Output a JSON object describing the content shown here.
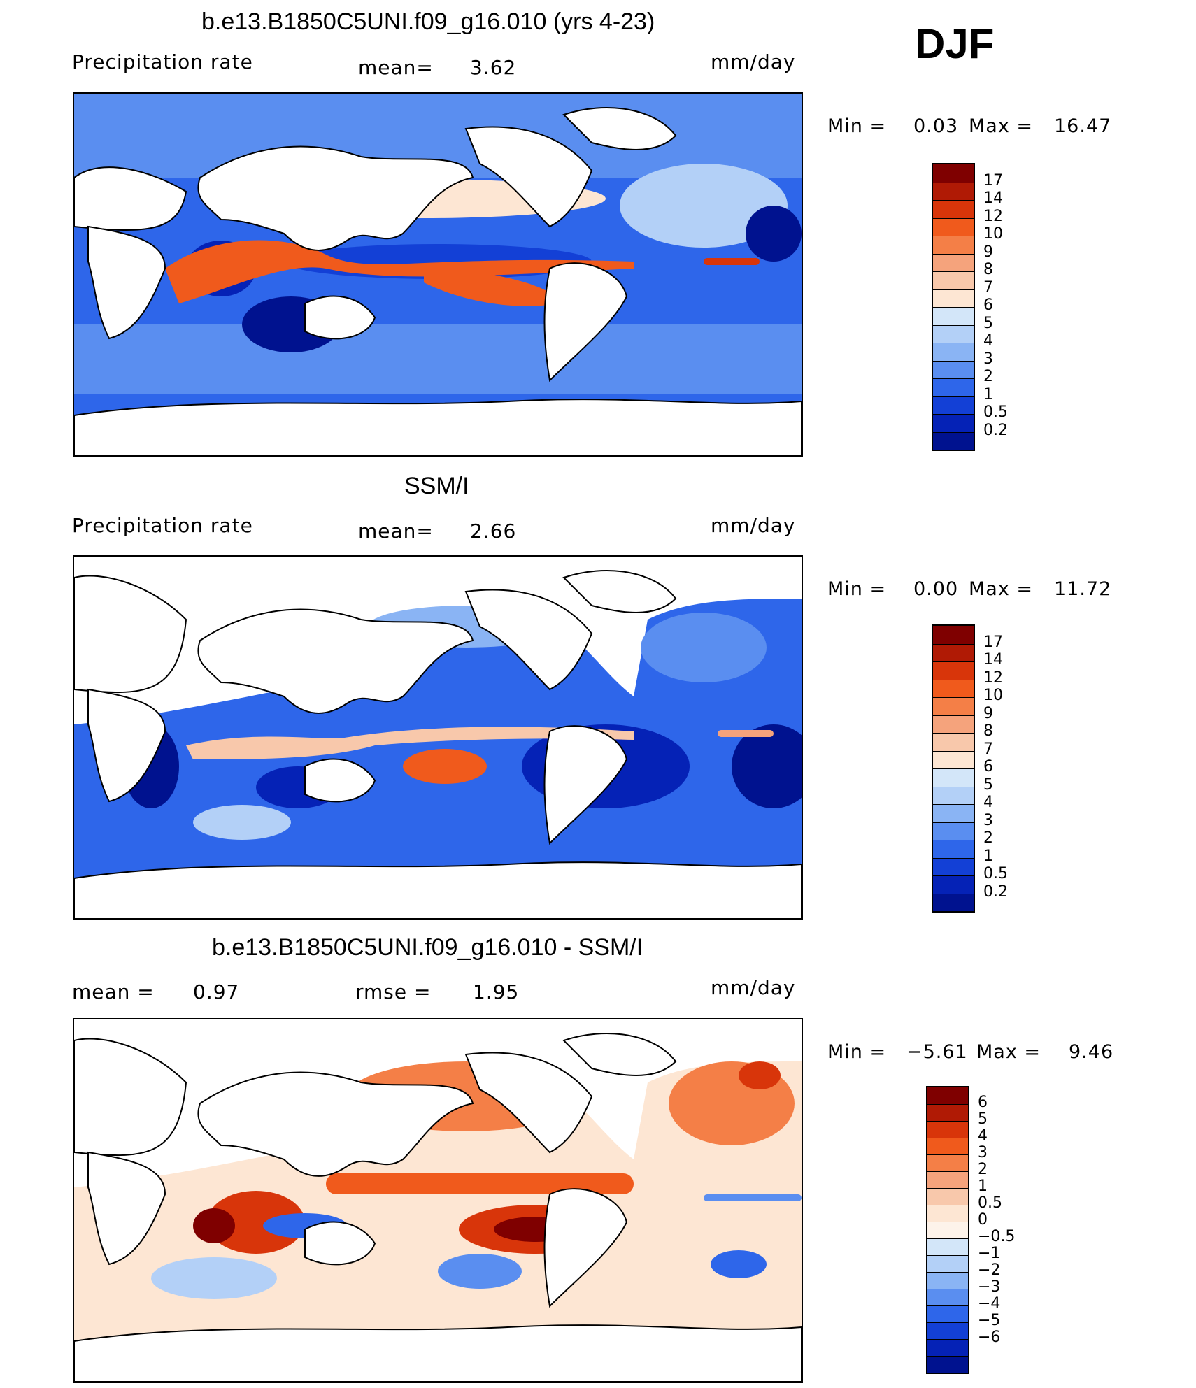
{
  "figure": {
    "season": "DJF",
    "panels": [
      {
        "id": "model",
        "title": "b.e13.B1850C5UNI.f09_g16.010 (yrs 4-23)",
        "left_label": "Precipitation  rate",
        "center_label": "mean=",
        "center_value": "3.62",
        "units": "mm/day",
        "min_label": "Min  =",
        "min_value": "0.03",
        "max_label": "Max  =",
        "max_value": "16.47",
        "colorbar_labels": [
          "17",
          "14",
          "12",
          "10",
          "9",
          "8",
          "7",
          "6",
          "5",
          "4",
          "3",
          "2",
          "1",
          "0.5",
          "0.2"
        ]
      },
      {
        "id": "obs",
        "title": "SSM/I",
        "left_label": "Precipitation  rate",
        "center_label": "mean=",
        "center_value": "2.66",
        "units": "mm/day",
        "min_label": "Min  =",
        "min_value": "0.00",
        "max_label": "Max  =",
        "max_value": "11.72",
        "colorbar_labels": [
          "17",
          "14",
          "12",
          "10",
          "9",
          "8",
          "7",
          "6",
          "5",
          "4",
          "3",
          "2",
          "1",
          "0.5",
          "0.2"
        ]
      },
      {
        "id": "diff",
        "title": "b.e13.B1850C5UNI.f09_g16.010 - SSM/I",
        "left_label": "mean  =",
        "left_value": "0.97",
        "center_label": "rmse  =",
        "center_value": "1.95",
        "units": "mm/day",
        "min_label": "Min  =",
        "min_value": "−5.61",
        "max_label": "Max  =",
        "max_value": "9.46",
        "colorbar_labels": [
          "6",
          "5",
          "4",
          "3",
          "2",
          "1",
          "0.5",
          "0",
          "−0.5",
          "−1",
          "−2",
          "−3",
          "−4",
          "−5",
          "−6"
        ]
      }
    ],
    "colors": {
      "precip_scale": [
        "#7f0000",
        "#b01a05",
        "#d8350a",
        "#f05a1c",
        "#f47f47",
        "#f5a37c",
        "#f8c8ab",
        "#fde6d3",
        "#d3e6f9",
        "#b3d0f7",
        "#8ab4f4",
        "#5a8ef0",
        "#2e66ea",
        "#1340d6",
        "#0522b6",
        "#00128f"
      ],
      "diff_scale": [
        "#7f0000",
        "#b01a05",
        "#d8350a",
        "#f05a1c",
        "#f47f47",
        "#f5a37c",
        "#f8c8ab",
        "#fde6d3",
        "#fdf3ea",
        "#d3e6f9",
        "#b3d0f7",
        "#8ab4f4",
        "#5a8ef0",
        "#2e66ea",
        "#1340d6",
        "#0522b6",
        "#00128f"
      ],
      "land": "#ffffff",
      "coast": "#000000"
    }
  }
}
